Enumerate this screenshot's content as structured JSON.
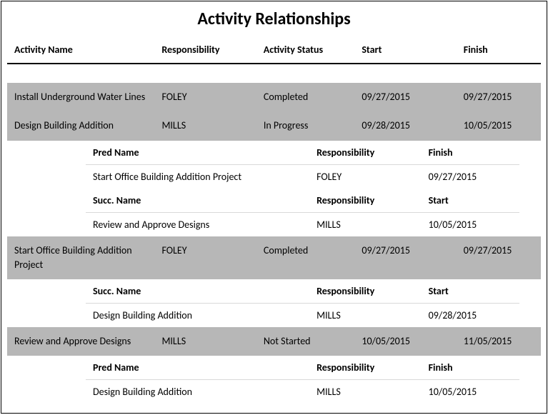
{
  "title": "Activity Relationships",
  "colors": {
    "row_bg": "#b7b7b7",
    "border": "#000000",
    "subline": "#d9d9d9",
    "text": "#000000",
    "page_bg": "#ffffff"
  },
  "headers": {
    "name": "Activity Name",
    "resp": "Responsibility",
    "status": "Activity Status",
    "start": "Start",
    "finish": "Finish"
  },
  "sub_labels": {
    "pred_name": "Pred Name",
    "succ_name": "Succ. Name",
    "responsibility": "Responsibility",
    "finish": "Finish",
    "start": "Start"
  },
  "activities": [
    {
      "name": "Install Underground Water Lines",
      "resp": "FOLEY",
      "status": "Completed",
      "start": "09/27/2015",
      "finish": "09/27/2015"
    },
    {
      "name": "Design Building Addition",
      "resp": "MILLS",
      "status": "In Progress",
      "start": "09/28/2015",
      "finish": "10/05/2015",
      "pred": {
        "name": "Start Office Building Addition Project",
        "resp": "FOLEY",
        "date": "09/27/2015"
      },
      "succ": {
        "name": "Review and Approve Designs",
        "resp": "MILLS",
        "date": "10/05/2015"
      }
    },
    {
      "name": "Start Office Building Addition Project",
      "resp": "FOLEY",
      "status": "Completed",
      "start": "09/27/2015",
      "finish": "09/27/2015",
      "succ": {
        "name": "Design Building Addition",
        "resp": "MILLS",
        "date": "09/28/2015"
      }
    },
    {
      "name": "Review and Approve Designs",
      "resp": "MILLS",
      "status": "Not Started",
      "start": "10/05/2015",
      "finish": "11/05/2015",
      "pred": {
        "name": "Design Building Addition",
        "resp": "MILLS",
        "date": "10/05/2015"
      }
    }
  ]
}
